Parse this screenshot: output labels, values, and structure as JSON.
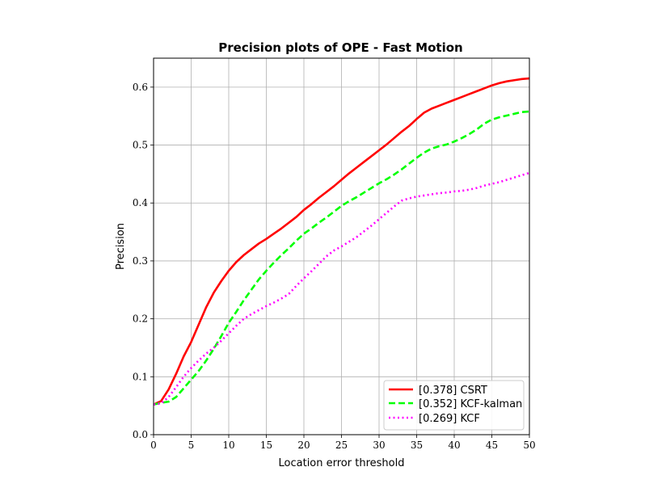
{
  "chart_data": {
    "type": "line",
    "title": "Precision plots of OPE - Fast Motion",
    "xlabel": "Location error threshold",
    "ylabel": "Precision",
    "xlim": [
      0,
      50
    ],
    "ylim": [
      0,
      0.65
    ],
    "xticks": [
      0,
      5,
      10,
      15,
      20,
      25,
      30,
      35,
      40,
      45,
      50
    ],
    "yticks": [
      0.0,
      0.1,
      0.2,
      0.3,
      0.4,
      0.5,
      0.6
    ],
    "xtick_labels": [
      "0",
      "5",
      "10",
      "15",
      "20",
      "25",
      "30",
      "35",
      "40",
      "45",
      "50"
    ],
    "ytick_labels": [
      "0.0",
      "0.1",
      "0.2",
      "0.3",
      "0.4",
      "0.5",
      "0.6"
    ],
    "grid": true,
    "legend_position": "bottom-right",
    "x": [
      0,
      1,
      2,
      3,
      4,
      5,
      6,
      7,
      8,
      9,
      10,
      11,
      12,
      13,
      14,
      15,
      16,
      17,
      18,
      19,
      20,
      21,
      22,
      23,
      24,
      25,
      26,
      27,
      28,
      29,
      30,
      31,
      32,
      33,
      34,
      35,
      36,
      37,
      38,
      39,
      40,
      41,
      42,
      43,
      44,
      45,
      46,
      47,
      48,
      49,
      50
    ],
    "series": [
      {
        "name": "[0.378] CSRT",
        "color": "#ff0000",
        "style": "solid",
        "values": [
          0.052,
          0.058,
          0.078,
          0.105,
          0.135,
          0.16,
          0.19,
          0.22,
          0.245,
          0.265,
          0.283,
          0.298,
          0.31,
          0.32,
          0.33,
          0.338,
          0.347,
          0.356,
          0.366,
          0.376,
          0.388,
          0.398,
          0.409,
          0.419,
          0.429,
          0.44,
          0.451,
          0.461,
          0.471,
          0.481,
          0.491,
          0.501,
          0.512,
          0.523,
          0.533,
          0.545,
          0.556,
          0.563,
          0.568,
          0.573,
          0.578,
          0.583,
          0.588,
          0.593,
          0.598,
          0.603,
          0.607,
          0.61,
          0.612,
          0.614,
          0.615
        ]
      },
      {
        "name": "[0.352] KCF-kalman",
        "color": "#00ff00",
        "style": "dashed",
        "values": [
          0.052,
          0.055,
          0.057,
          0.065,
          0.08,
          0.095,
          0.11,
          0.128,
          0.148,
          0.17,
          0.193,
          0.212,
          0.232,
          0.25,
          0.268,
          0.283,
          0.297,
          0.31,
          0.322,
          0.335,
          0.347,
          0.356,
          0.366,
          0.375,
          0.385,
          0.395,
          0.403,
          0.41,
          0.418,
          0.426,
          0.434,
          0.441,
          0.449,
          0.458,
          0.468,
          0.478,
          0.487,
          0.494,
          0.498,
          0.501,
          0.506,
          0.512,
          0.519,
          0.527,
          0.537,
          0.544,
          0.548,
          0.551,
          0.554,
          0.557,
          0.558
        ]
      },
      {
        "name": "[0.269] KCF",
        "color": "#ff00ff",
        "style": "dotted",
        "values": [
          0.052,
          0.054,
          0.065,
          0.082,
          0.1,
          0.115,
          0.128,
          0.14,
          0.15,
          0.162,
          0.175,
          0.188,
          0.2,
          0.208,
          0.215,
          0.222,
          0.228,
          0.235,
          0.243,
          0.257,
          0.27,
          0.282,
          0.295,
          0.308,
          0.318,
          0.325,
          0.333,
          0.341,
          0.351,
          0.361,
          0.372,
          0.383,
          0.394,
          0.404,
          0.408,
          0.411,
          0.413,
          0.415,
          0.417,
          0.418,
          0.42,
          0.421,
          0.423,
          0.426,
          0.43,
          0.433,
          0.436,
          0.44,
          0.444,
          0.448,
          0.452
        ]
      }
    ]
  }
}
